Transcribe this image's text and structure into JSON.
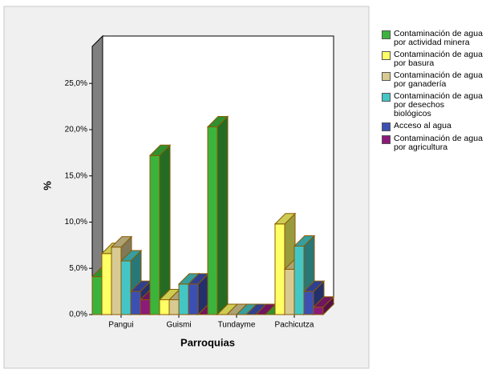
{
  "chart_data": {
    "type": "bar3d",
    "x_label": "Parroquias",
    "y_label": "%",
    "categories": [
      "Pangui",
      "Guismi",
      "Tundayme",
      "Pachicutza"
    ],
    "ylim": [
      0,
      29
    ],
    "yticks": [
      {
        "value": 0,
        "label": "0,0%"
      },
      {
        "value": 5,
        "label": "5,0%"
      },
      {
        "value": 10,
        "label": "10,0%"
      },
      {
        "value": 15,
        "label": "15,0%"
      },
      {
        "value": 20,
        "label": "20,0%"
      },
      {
        "value": 25,
        "label": "25,0%"
      }
    ],
    "series": [
      {
        "name": "Contaminación de agua por actividad minera",
        "color": "#3cb43c",
        "values": [
          4.1,
          17.2,
          20.3,
          0
        ]
      },
      {
        "name": "Contaminación de agua por basura",
        "color": "#ffff66",
        "values": [
          6.6,
          1.6,
          0,
          9.8
        ]
      },
      {
        "name": "Contaminación de agua por ganadería",
        "color": "#d8ca92",
        "values": [
          7.3,
          1.6,
          0,
          4.9
        ]
      },
      {
        "name": "Contaminación de agua por desechos biológicos",
        "color": "#44c6c6",
        "values": [
          5.8,
          3.3,
          0,
          7.4
        ]
      },
      {
        "name": "Acceso al agua",
        "color": "#3c50b4",
        "values": [
          2.5,
          3.3,
          0,
          2.5
        ]
      },
      {
        "name": "Contaminación de agua por agricultura",
        "color": "#8c1a78",
        "values": [
          1.6,
          0,
          0,
          0.8
        ]
      }
    ]
  }
}
